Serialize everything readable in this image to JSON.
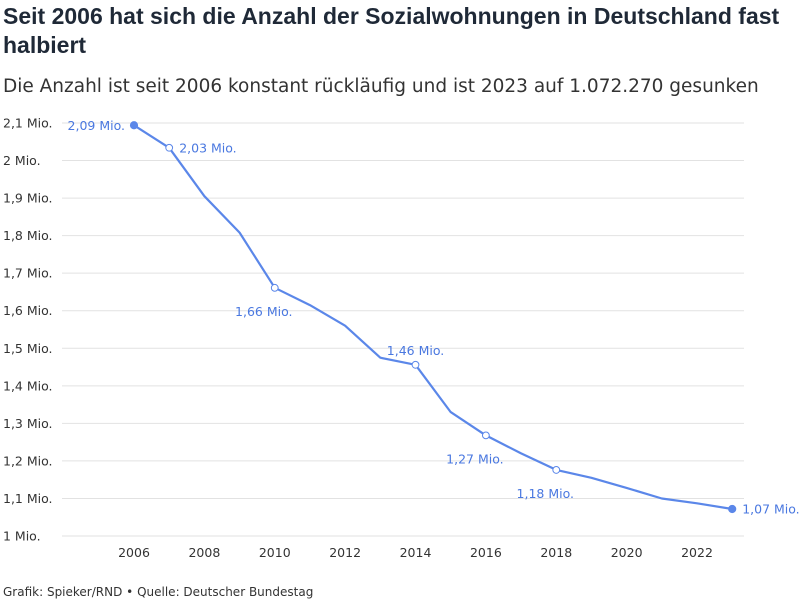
{
  "title": "Seit 2006 hat sich die Anzahl der Sozialwohnungen in Deutschland fast halbiert",
  "subtitle": "Die Anzahl ist seit 2006 konstant rückläufig und ist 2023 auf 1.072.270 gesunken",
  "footer": {
    "credit": "Grafik: Spieker/RND",
    "separator": "•",
    "source": "Quelle: Deutscher Bundestag"
  },
  "colors": {
    "line": "#5b87e9",
    "label": "#4a78e0",
    "grid": "#e2e2e2",
    "text": "#333333"
  },
  "chart_data": {
    "type": "line",
    "title": "Seit 2006 hat sich die Anzahl der Sozialwohnungen in Deutschland fast halbiert",
    "subtitle": "Die Anzahl ist seit 2006 konstant rückläufig und ist 2023 auf 1.072.270 gesunken",
    "xlabel": "",
    "ylabel": "",
    "xlim": [
      2005,
      2023
    ],
    "ylim": [
      1.0,
      2.1
    ],
    "grid": true,
    "x_ticks": [
      2006,
      2008,
      2010,
      2012,
      2014,
      2016,
      2018,
      2020,
      2022
    ],
    "y_ticks": [
      {
        "value": 1.0,
        "label": "1 Mio."
      },
      {
        "value": 1.1,
        "label": "1,1 Mio."
      },
      {
        "value": 1.2,
        "label": "1,2 Mio."
      },
      {
        "value": 1.3,
        "label": "1,3 Mio."
      },
      {
        "value": 1.4,
        "label": "1,4 Mio."
      },
      {
        "value": 1.5,
        "label": "1,5 Mio."
      },
      {
        "value": 1.6,
        "label": "1,6 Mio."
      },
      {
        "value": 1.7,
        "label": "1,7 Mio."
      },
      {
        "value": 1.8,
        "label": "1,8 Mio."
      },
      {
        "value": 1.9,
        "label": "1,9 Mio."
      },
      {
        "value": 2.0,
        "label": "2 Mio."
      },
      {
        "value": 2.1,
        "label": "2,1 Mio."
      }
    ],
    "series": [
      {
        "x": [
          2006,
          2007,
          2008,
          2009,
          2010,
          2011,
          2012,
          2013,
          2014,
          2015,
          2016,
          2017,
          2018,
          2019,
          2020,
          2021,
          2022,
          2023
        ],
        "y": [
          2.094,
          2.034,
          1.905,
          1.808,
          1.661,
          1.615,
          1.56,
          1.475,
          1.456,
          1.33,
          1.268,
          1.22,
          1.176,
          1.155,
          1.128,
          1.1,
          1.087,
          1.072
        ]
      }
    ],
    "annotations": [
      {
        "x": 2006,
        "y": 2.094,
        "label": "2,09 Mio.",
        "marker": "filled",
        "position": "left"
      },
      {
        "x": 2007,
        "y": 2.034,
        "label": "2,03 Mio.",
        "marker": "hollow",
        "position": "right"
      },
      {
        "x": 2010,
        "y": 1.661,
        "label": "1,66 Mio.",
        "marker": "hollow",
        "position": "below"
      },
      {
        "x": 2014,
        "y": 1.456,
        "label": "1,46 Mio.",
        "marker": "hollow",
        "position": "above"
      },
      {
        "x": 2016,
        "y": 1.268,
        "label": "1,27 Mio.",
        "marker": "hollow",
        "position": "below"
      },
      {
        "x": 2018,
        "y": 1.176,
        "label": "1,18 Mio.",
        "marker": "hollow",
        "position": "below"
      },
      {
        "x": 2023,
        "y": 1.072,
        "label": "1,07 Mio.",
        "marker": "filled",
        "position": "right"
      }
    ]
  }
}
